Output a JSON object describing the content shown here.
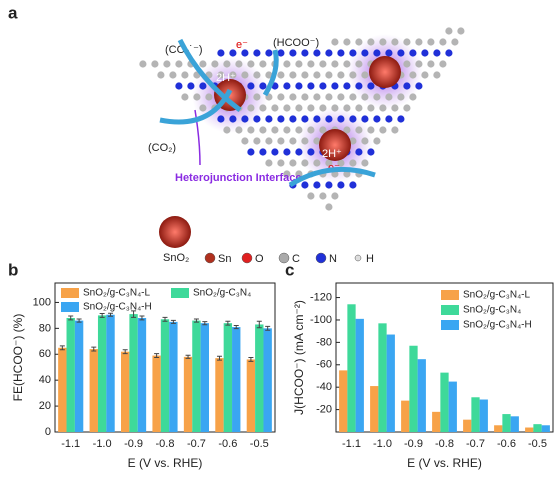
{
  "schematic": {
    "panel": "a",
    "co2_radical": "(CO₂˙⁻)",
    "electron_1": "e⁻",
    "formate": "(HCOO⁻)",
    "protons_1": "2H⁺",
    "co2": "(CO₂)",
    "interface": "Heterojunction Interface",
    "protons_2": "2H⁺",
    "electron_2": "e⁻",
    "cluster": "SnO₂",
    "atoms": [
      "Sn",
      "O",
      "C",
      "N",
      "H"
    ]
  },
  "chart_data": [
    {
      "type": "bar",
      "panel": "b",
      "ylabel": "FE(HCOO⁻) (%)",
      "xlabel": "E (V vs. RHE)",
      "categories": [
        "-1.1",
        "-1.0",
        "-0.9",
        "-0.8",
        "-0.7",
        "-0.6",
        "-0.5"
      ],
      "series": [
        {
          "name": "SnO₂/g-C₃N₄-L",
          "color": "#f7a248",
          "values": [
            65,
            64,
            62,
            59,
            58,
            57,
            56
          ],
          "errors": [
            1.5,
            1.5,
            1.5,
            1.5,
            1.2,
            1.5,
            1.5
          ]
        },
        {
          "name": "SnO₂/g-C₃N₄",
          "color": "#3ed99a",
          "values": [
            88,
            90,
            91,
            87,
            86,
            84,
            83
          ],
          "errors": [
            1.5,
            1.5,
            2.5,
            1.5,
            1.2,
            1.5,
            2.5
          ]
        },
        {
          "name": "SnO₂/g-C₃N₄-H",
          "color": "#3aa6f2",
          "values": [
            86,
            90.5,
            88,
            85,
            84,
            81,
            80
          ],
          "errors": [
            1.2,
            1.2,
            1.5,
            1.2,
            1.2,
            1.2,
            1.5
          ]
        }
      ],
      "ylim": [
        0,
        115
      ],
      "yticks": [
        0,
        20,
        40,
        60,
        80,
        100
      ],
      "legend": "upper center"
    },
    {
      "type": "bar",
      "panel": "c",
      "ylabel": "J(HCOO⁻) (mA cm⁻²)",
      "xlabel": "E (V vs. RHE)",
      "categories": [
        "-1.1",
        "-1.0",
        "-0.9",
        "-0.8",
        "-0.7",
        "-0.6",
        "-0.5"
      ],
      "series": [
        {
          "name": "SnO₂/g-C₃N₄-L",
          "color": "#f7a248",
          "values": [
            -55,
            -41,
            -28,
            -18,
            -11,
            -6,
            -4
          ]
        },
        {
          "name": "SnO₂/g-C₃N₄",
          "color": "#3ed99a",
          "values": [
            -114,
            -97,
            -77,
            -53,
            -31,
            -16,
            -7
          ]
        },
        {
          "name": "SnO₂/g-C₃N₄-H",
          "color": "#3aa6f2",
          "values": [
            -101,
            -87,
            -65,
            -45,
            -29,
            -14,
            -6
          ]
        }
      ],
      "ylim": [
        0,
        -133
      ],
      "yticks": [
        -20,
        -40,
        -60,
        -80,
        -100,
        -120
      ],
      "legend": "upper right"
    }
  ]
}
